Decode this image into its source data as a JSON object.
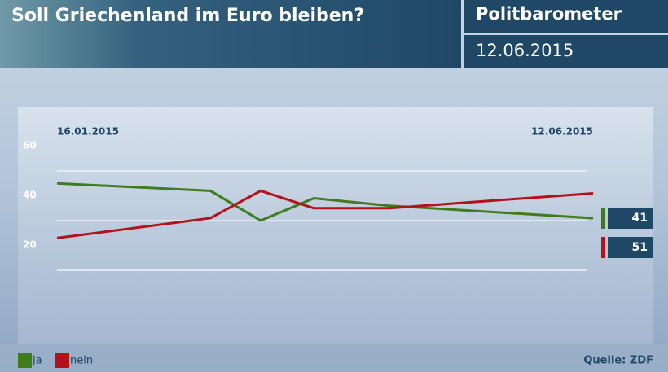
{
  "chart_data": {
    "type": "line",
    "title": "Soll Griechenland im Euro bleiben?",
    "brand": "Politbarometer",
    "date": "12.06.2015",
    "source": "Quelle: ZDF",
    "categories": [
      "16.01.2015",
      null,
      null,
      null,
      null,
      "12.06.2015"
    ],
    "series": [
      {
        "name": "ja",
        "color": "#3f7d1c",
        "values": [
          55,
          52,
          40,
          49,
          46,
          41
        ]
      },
      {
        "name": "nein",
        "color": "#b3121a",
        "values": [
          33,
          41,
          52,
          45,
          45,
          51
        ]
      }
    ],
    "ylim": [
      0,
      80
    ],
    "yticks": [
      20,
      40,
      60
    ],
    "grid": true
  }
}
